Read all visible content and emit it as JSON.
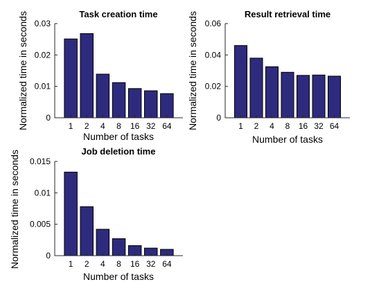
{
  "figure": {
    "bar_color": "#2e2a7e",
    "axis_color": "#262626",
    "background": "#ffffff"
  },
  "chart_data": [
    {
      "type": "bar",
      "title": "Task creation time",
      "xlabel": "Number of tasks",
      "ylabel": "Normalized time in seconds",
      "categories": [
        "1",
        "2",
        "4",
        "8",
        "16",
        "32",
        "64"
      ],
      "values": [
        0.0251,
        0.0268,
        0.0139,
        0.0112,
        0.0093,
        0.0086,
        0.0077
      ],
      "ylim": [
        0,
        0.03
      ],
      "yticks": [
        "0",
        "0.01",
        "0.02",
        "0.03"
      ],
      "ytick_values": [
        0,
        0.01,
        0.02,
        0.03
      ],
      "grid": false
    },
    {
      "type": "bar",
      "title": "Result retrieval time",
      "xlabel": "Number of tasks",
      "ylabel": "Normalized time in seconds",
      "categories": [
        "1",
        "2",
        "4",
        "8",
        "16",
        "32",
        "64"
      ],
      "values": [
        0.046,
        0.038,
        0.0325,
        0.029,
        0.027,
        0.0272,
        0.0265
      ],
      "ylim": [
        0,
        0.06
      ],
      "yticks": [
        "0",
        "0.02",
        "0.04",
        "0.06"
      ],
      "ytick_values": [
        0,
        0.02,
        0.04,
        0.06
      ],
      "grid": false
    },
    {
      "type": "bar",
      "title": "Job deletion time",
      "xlabel": "Number of tasks",
      "ylabel": "Normalized time in seconds",
      "categories": [
        "1",
        "2",
        "4",
        "8",
        "16",
        "32",
        "64"
      ],
      "values": [
        0.0133,
        0.0078,
        0.0042,
        0.0027,
        0.0016,
        0.0012,
        0.001
      ],
      "ylim": [
        0,
        0.015
      ],
      "yticks": [
        "0",
        "0.005",
        "0.01",
        "0.015"
      ],
      "ytick_values": [
        0,
        0.005,
        0.01,
        0.015
      ],
      "grid": false
    }
  ]
}
